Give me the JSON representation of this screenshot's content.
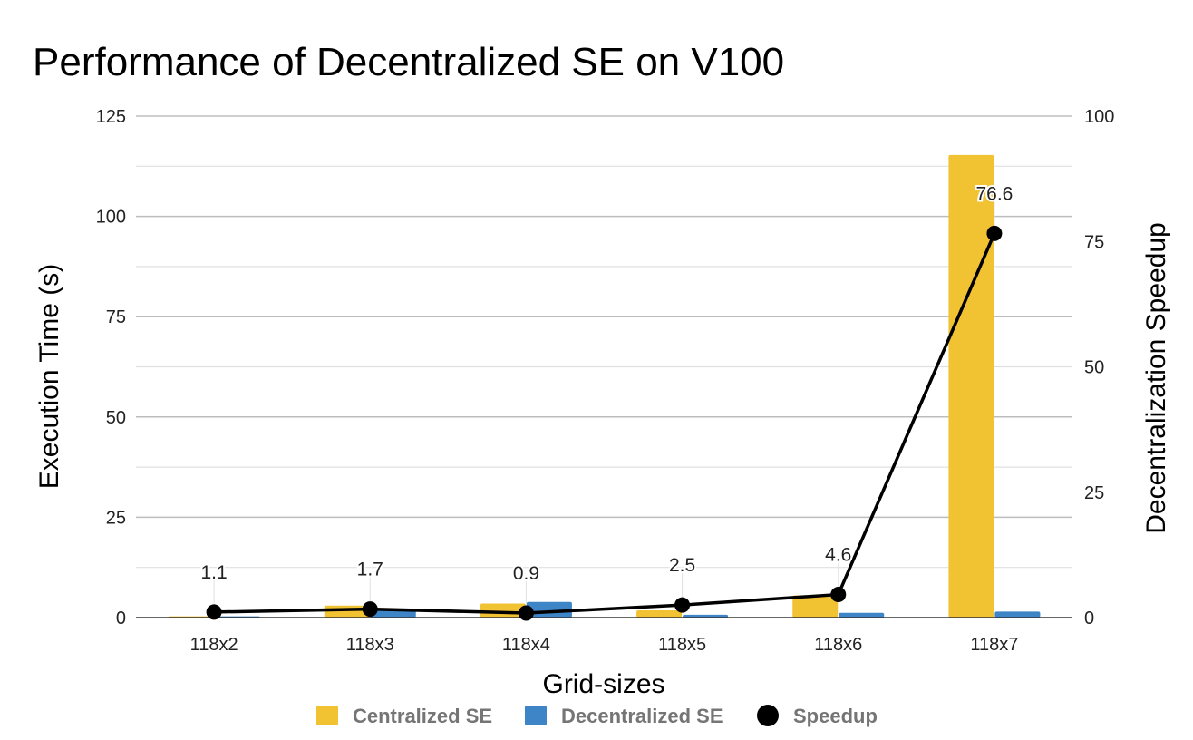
{
  "chart_data": {
    "type": "bar",
    "title": "Performance of Decentralized SE on V100",
    "xlabel": "Grid-sizes",
    "ylabel": "Execution Time (s)",
    "y2label": "Decentralization Speedup",
    "categories": [
      "118x2",
      "118x3",
      "118x4",
      "118x5",
      "118x6",
      "118x7"
    ],
    "ylim": [
      0,
      125
    ],
    "y2lim": [
      0,
      100
    ],
    "yticks": [
      "0",
      "25",
      "50",
      "75",
      "100",
      "125"
    ],
    "y2ticks": [
      "0",
      "25",
      "50",
      "75",
      "100"
    ],
    "grid": true,
    "legend_position": "bottom",
    "series": [
      {
        "name": "Centralized SE",
        "kind": "bar",
        "axis": "left",
        "color": "#F1C232",
        "values": [
          0.3,
          3.0,
          3.5,
          1.8,
          5.5,
          115.3
        ]
      },
      {
        "name": "Decentralized SE",
        "kind": "bar",
        "axis": "left",
        "color": "#3D85C6",
        "values": [
          0.3,
          1.8,
          3.9,
          0.7,
          1.2,
          1.5
        ]
      },
      {
        "name": "Speedup",
        "kind": "line",
        "axis": "right",
        "color": "#000000",
        "values": [
          1.1,
          1.7,
          0.9,
          2.5,
          4.6,
          76.6
        ],
        "labels": [
          "1.1",
          "1.7",
          "0.9",
          "2.5",
          "4.6",
          "76.6"
        ]
      }
    ]
  }
}
